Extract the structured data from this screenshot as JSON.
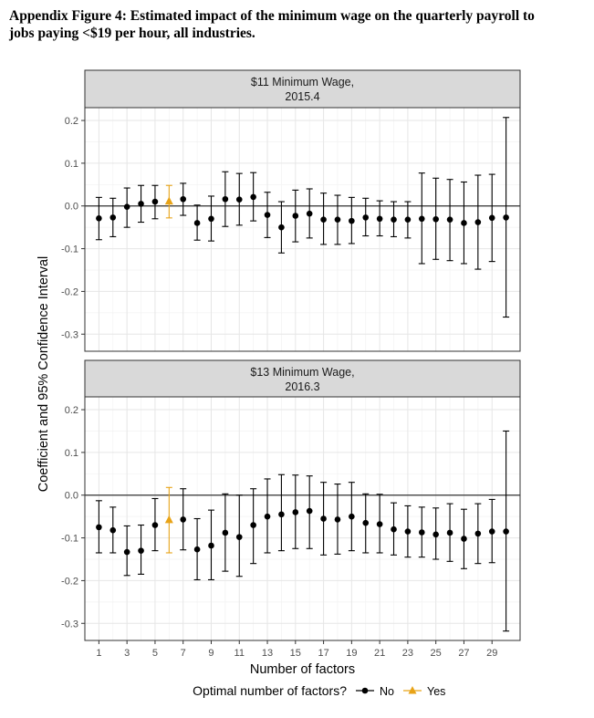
{
  "figure": {
    "title_line1": "Appendix Figure 4: Estimated impact of the minimum wage on the quarterly payroll to",
    "title_line2": "jobs paying <$19 per hour, all industries."
  },
  "chart_data": [
    {
      "type": "scatter",
      "panel_label_line1": "$11 Minimum Wage,",
      "panel_label_line2": "2015.4",
      "x": [
        1,
        2,
        3,
        4,
        5,
        6,
        7,
        8,
        9,
        10,
        11,
        12,
        13,
        14,
        15,
        16,
        17,
        18,
        19,
        20,
        21,
        22,
        23,
        24,
        25,
        26,
        27,
        28,
        29,
        30
      ],
      "y": [
        -0.029,
        -0.027,
        -0.002,
        0.005,
        0.01,
        0.011,
        0.016,
        -0.04,
        -0.03,
        0.016,
        0.015,
        0.021,
        -0.021,
        -0.05,
        -0.023,
        -0.018,
        -0.032,
        -0.032,
        -0.035,
        -0.027,
        -0.03,
        -0.032,
        -0.032,
        -0.03,
        -0.031,
        -0.032,
        -0.04,
        -0.038,
        -0.028,
        -0.027
      ],
      "lower": [
        -0.079,
        -0.072,
        -0.05,
        -0.038,
        -0.03,
        -0.028,
        -0.022,
        -0.08,
        -0.082,
        -0.048,
        -0.045,
        -0.035,
        -0.074,
        -0.11,
        -0.084,
        -0.075,
        -0.09,
        -0.09,
        -0.088,
        -0.07,
        -0.07,
        -0.072,
        -0.075,
        -0.135,
        -0.125,
        -0.128,
        -0.135,
        -0.148,
        -0.13,
        -0.26
      ],
      "upper": [
        0.02,
        0.018,
        0.042,
        0.048,
        0.048,
        0.048,
        0.053,
        0.002,
        0.023,
        0.08,
        0.076,
        0.078,
        0.032,
        0.01,
        0.037,
        0.04,
        0.03,
        0.025,
        0.02,
        0.018,
        0.012,
        0.01,
        0.01,
        0.077,
        0.065,
        0.062,
        0.056,
        0.072,
        0.074,
        0.207
      ],
      "optimal_index": 5,
      "ylim": [
        -0.34,
        0.23
      ],
      "yticks": [
        -0.3,
        -0.2,
        -0.1,
        0.0,
        0.1,
        0.2
      ],
      "ytick_labels": [
        "-0.3",
        "-0.2",
        "-0.1",
        "0.0",
        "0.1",
        "0.2"
      ]
    },
    {
      "type": "scatter",
      "panel_label_line1": "$13 Minimum Wage,",
      "panel_label_line2": "2016.3",
      "x": [
        1,
        2,
        3,
        4,
        5,
        6,
        7,
        8,
        9,
        10,
        11,
        12,
        13,
        14,
        15,
        16,
        17,
        18,
        19,
        20,
        21,
        22,
        23,
        24,
        25,
        26,
        27,
        28,
        29,
        30
      ],
      "y": [
        -0.075,
        -0.082,
        -0.133,
        -0.13,
        -0.07,
        -0.058,
        -0.057,
        -0.127,
        -0.118,
        -0.088,
        -0.098,
        -0.07,
        -0.05,
        -0.045,
        -0.04,
        -0.037,
        -0.055,
        -0.057,
        -0.05,
        -0.065,
        -0.068,
        -0.08,
        -0.085,
        -0.087,
        -0.092,
        -0.088,
        -0.102,
        -0.09,
        -0.085,
        -0.085
      ],
      "lower": [
        -0.135,
        -0.135,
        -0.188,
        -0.185,
        -0.13,
        -0.135,
        -0.128,
        -0.198,
        -0.198,
        -0.178,
        -0.19,
        -0.16,
        -0.135,
        -0.13,
        -0.125,
        -0.125,
        -0.14,
        -0.138,
        -0.13,
        -0.135,
        -0.135,
        -0.14,
        -0.145,
        -0.145,
        -0.15,
        -0.155,
        -0.172,
        -0.16,
        -0.158,
        -0.318
      ],
      "upper": [
        -0.013,
        -0.028,
        -0.072,
        -0.07,
        -0.008,
        0.018,
        0.015,
        -0.055,
        -0.035,
        0.003,
        0.0,
        0.015,
        0.038,
        0.048,
        0.047,
        0.045,
        0.03,
        0.026,
        0.03,
        0.003,
        0.002,
        -0.018,
        -0.025,
        -0.028,
        -0.03,
        -0.02,
        -0.033,
        -0.02,
        -0.01,
        0.15
      ],
      "optimal_index": 5,
      "ylim": [
        -0.34,
        0.23
      ],
      "yticks": [
        -0.3,
        -0.2,
        -0.1,
        0.0,
        0.1,
        0.2
      ],
      "ytick_labels": [
        "-0.3",
        "-0.2",
        "-0.1",
        "0.0",
        "0.1",
        "0.2"
      ]
    }
  ],
  "axes": {
    "xlabel": "Number of factors",
    "ylabel": "Coefficient and 95% Confidence Interval",
    "xlim": [
      0,
      31
    ],
    "xticks": [
      1,
      3,
      5,
      7,
      9,
      11,
      13,
      15,
      17,
      19,
      21,
      23,
      25,
      27,
      29
    ],
    "xtick_labels": [
      "1",
      "3",
      "5",
      "7",
      "9",
      "11",
      "13",
      "15",
      "17",
      "19",
      "21",
      "23",
      "25",
      "27",
      "29"
    ],
    "grid": true
  },
  "legend": {
    "title": "Optimal number of factors?",
    "items": [
      {
        "label": "No",
        "color": "#000000",
        "marker": "circle"
      },
      {
        "label": "Yes",
        "color": "#e8a317",
        "marker": "triangle"
      }
    ],
    "position": "bottom"
  },
  "colors": {
    "no": "#000000",
    "yes": "#e8a317",
    "strip_fill": "#d9d9d9",
    "grid_major": "#e6e6e6",
    "grid_minor": "#f2f2f2"
  }
}
